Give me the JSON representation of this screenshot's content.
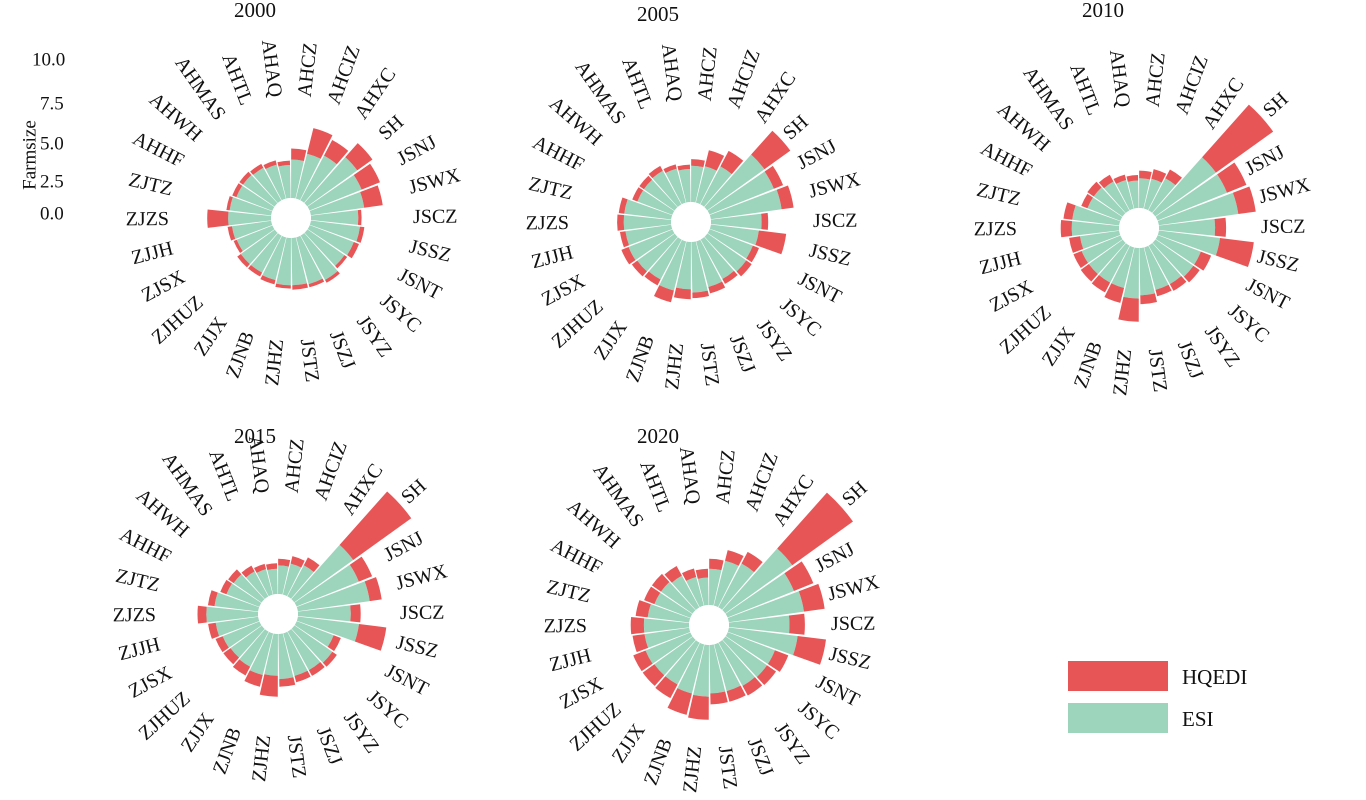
{
  "chart_data": {
    "type": "bar",
    "subtype": "stacked circular bar (radial) chart, small multiples",
    "ylabel": "Farmsize",
    "ylim": [
      0,
      10
    ],
    "scale_ticks": [
      "10.0",
      "7.5",
      "5.0",
      "2.5",
      "0.0"
    ],
    "categories": [
      "SH",
      "JSNJ",
      "JSWX",
      "JSCZ",
      "JSSZ",
      "JSNT",
      "JSYC",
      "JSYZ",
      "JSZJ",
      "JSTZ",
      "ZJHZ",
      "ZJNB",
      "ZJJX",
      "ZJHUZ",
      "ZJSX",
      "ZJJH",
      "ZJZS",
      "ZJTZ",
      "AHHF",
      "AHWH",
      "AHMAS",
      "AHTL",
      "AHAQ",
      "AHCZ",
      "AHCIZ",
      "AHXC"
    ],
    "legend": [
      {
        "name": "HQEDI",
        "color": "#e85556"
      },
      {
        "name": "ESI",
        "color": "#9dd4bc"
      }
    ],
    "colors": {
      "HQEDI": "#e85556",
      "ESI": "#9dd4bc"
    },
    "panels": [
      {
        "title": "2000",
        "series": [
          {
            "name": "ESI",
            "values": [
              5.6,
              5.1,
              4.9,
              4.3,
              4.5,
              4.3,
              4.1,
              4.6,
              4.4,
              4.3,
              4.3,
              4.0,
              3.8,
              3.8,
              3.5,
              3.6,
              3.9,
              3.8,
              3.5,
              3.5,
              3.4,
              3.2,
              3.0,
              3.5,
              4.2,
              4.6
            ]
          },
          {
            "name": "HQEDI",
            "values": [
              1.7,
              1.8,
              1.7,
              0.3,
              0.4,
              0.5,
              0.3,
              0.3,
              0.3,
              0.4,
              0.3,
              0.4,
              0.4,
              0.4,
              0.3,
              0.4,
              1.9,
              0.3,
              0.4,
              0.4,
              0.4,
              0.4,
              0.4,
              1.0,
              2.4,
              1.6
            ]
          }
        ]
      },
      {
        "title": "2005",
        "series": [
          {
            "name": "ESI",
            "values": [
              6.4,
              6.3,
              6.5,
              4.6,
              4.4,
              4.2,
              4.3,
              4.1,
              4.3,
              4.6,
              4.3,
              4.6,
              4.1,
              4.2,
              4.3,
              4.2,
              4.3,
              4.3,
              3.4,
              3.4,
              3.5,
              3.2,
              3.0,
              3.3,
              3.4,
              3.9
            ]
          },
          {
            "name": "HQEDI",
            "values": [
              2.9,
              0.9,
              1.1,
              0.6,
              2.5,
              0.6,
              0.6,
              0.5,
              0.6,
              0.5,
              0.9,
              1.1,
              0.6,
              0.6,
              0.7,
              0.5,
              0.6,
              0.5,
              0.5,
              0.5,
              0.5,
              0.4,
              0.4,
              0.6,
              1.5,
              1.6
            ]
          }
        ]
      },
      {
        "title": "2010",
        "series": [
          {
            "name": "ESI",
            "values": [
              6.8,
              6.8,
              7.3,
              5.1,
              5.6,
              4.2,
              4.2,
              4.0,
              4.0,
              4.3,
              4.6,
              3.8,
              3.8,
              3.8,
              3.8,
              3.6,
              4.3,
              4.3,
              3.2,
              3.2,
              3.0,
              2.7,
              2.5,
              2.7,
              2.8,
              3.3
            ]
          },
          {
            "name": "HQEDI",
            "values": [
              6.4,
              1.9,
              1.6,
              1.0,
              3.1,
              1.0,
              0.7,
              0.7,
              0.6,
              0.8,
              2.1,
              1.4,
              1.0,
              0.9,
              0.8,
              1.0,
              1.0,
              0.8,
              0.6,
              0.7,
              0.7,
              0.5,
              0.5,
              0.7,
              0.9,
              0.9
            ]
          }
        ]
      },
      {
        "title": "2015",
        "series": [
          {
            "name": "ESI",
            "values": [
              6.6,
              6.1,
              6.6,
              4.8,
              5.6,
              3.6,
              4.2,
              4.0,
              4.0,
              4.1,
              3.8,
              3.9,
              3.6,
              3.5,
              3.6,
              3.9,
              4.7,
              4.0,
              3.2,
              3.1,
              2.6,
              2.4,
              2.3,
              2.6,
              2.9,
              3.2
            ]
          },
          {
            "name": "HQEDI",
            "values": [
              6.5,
              1.3,
              1.1,
              0.9,
              2.5,
              0.7,
              0.5,
              0.6,
              0.6,
              0.7,
              1.9,
              1.1,
              0.9,
              0.8,
              0.7,
              0.7,
              0.8,
              0.6,
              0.6,
              0.6,
              0.6,
              0.5,
              0.5,
              0.6,
              0.7,
              0.8
            ]
          }
        ]
      },
      {
        "title": "2020",
        "series": [
          {
            "name": "ESI",
            "values": [
              7.5,
              6.5,
              6.9,
              5.5,
              6.3,
              4.6,
              4.6,
              4.5,
              4.4,
              4.4,
              4.7,
              4.6,
              4.3,
              4.3,
              4.4,
              4.1,
              4.1,
              3.8,
              3.5,
              3.5,
              3.3,
              2.7,
              2.5,
              3.3,
              4.2,
              4.5
            ]
          },
          {
            "name": "HQEDI",
            "values": [
              6.8,
              1.9,
              1.9,
              1.4,
              2.6,
              1.3,
              1.0,
              1.0,
              1.0,
              1.0,
              2.1,
              2.0,
              1.4,
              1.3,
              1.2,
              1.1,
              1.2,
              1.1,
              1.0,
              1.0,
              1.0,
              0.8,
              0.8,
              0.9,
              1.0,
              1.2
            ]
          }
        ]
      }
    ]
  }
}
